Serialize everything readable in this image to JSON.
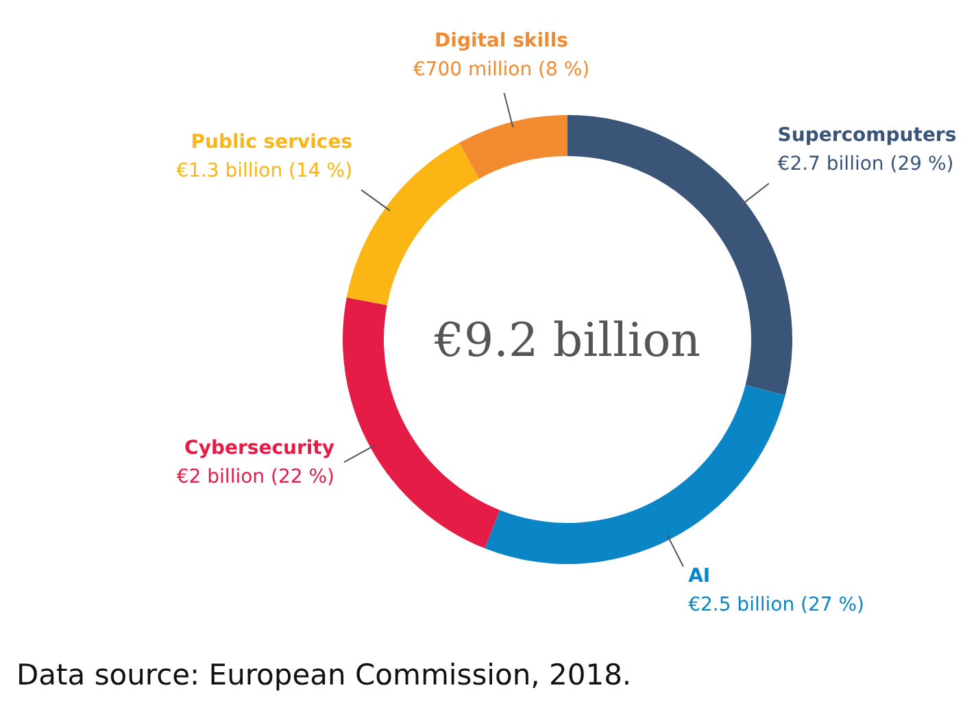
{
  "chart_data": {
    "type": "donut",
    "categories": [
      "Supercomputers",
      "AI",
      "Cybersecurity",
      "Public services",
      "Digital skills"
    ],
    "values": [
      29,
      27,
      22,
      14,
      8
    ],
    "value_labels": [
      "€2.7 billion (29 %)",
      "€2.5 billion (27 %)",
      "€2 billion (22 %)",
      "€1.3 billion (14 %)",
      "€700 million (8 %)"
    ],
    "colors": [
      "#3a5577",
      "#0a86c6",
      "#e41c46",
      "#fbb616",
      "#f28a30"
    ],
    "annotations": [
      "€9.2 billion",
      "Data source: European Commission, 2018."
    ]
  }
}
